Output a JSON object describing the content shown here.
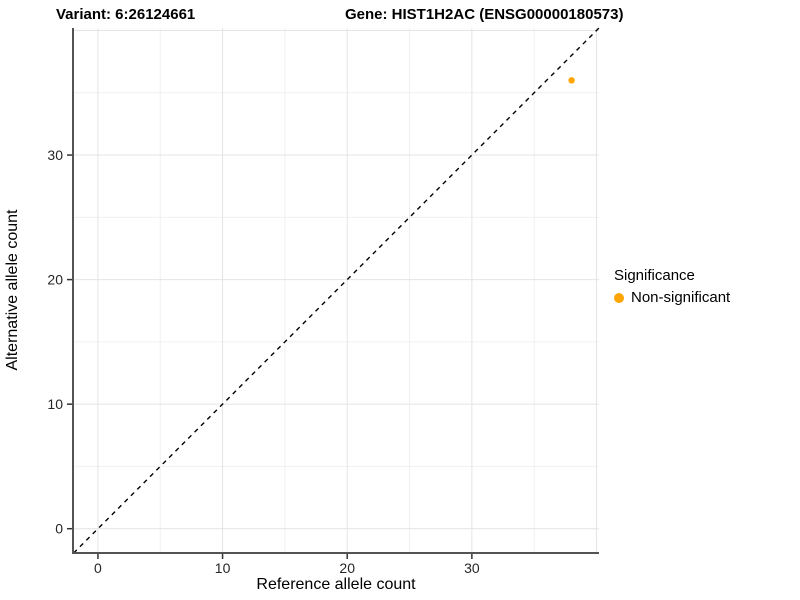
{
  "chart_data": {
    "type": "scatter",
    "title_left": "Variant: 6:26124661",
    "title_right": "Gene: HIST1H2AC (ENSG00000180573)",
    "xlabel": "Reference allele count",
    "ylabel": "Alternative allele count",
    "xlim": [
      -2,
      40.2
    ],
    "ylim": [
      -1.95,
      40.2
    ],
    "xticks": [
      0,
      10,
      20,
      30
    ],
    "yticks": [
      0,
      10,
      20,
      30
    ],
    "grid": {
      "minor_step": 5,
      "major_step": 10,
      "major_color": "#e4e4e4",
      "minor_color": "#f0f0f0"
    },
    "axis_line_color": "#545454",
    "tick_color": "#333333",
    "reference_line": {
      "kind": "identity",
      "dashed": true,
      "color": "#000000"
    },
    "series": [
      {
        "name": "Non-significant",
        "color": "#FFA500",
        "points": [
          {
            "x": 38,
            "y": 36
          }
        ]
      }
    ],
    "legend": {
      "title": "Significance",
      "position": "right",
      "entries": [
        {
          "label": "Non-significant",
          "color": "#FFA500"
        }
      ]
    }
  }
}
